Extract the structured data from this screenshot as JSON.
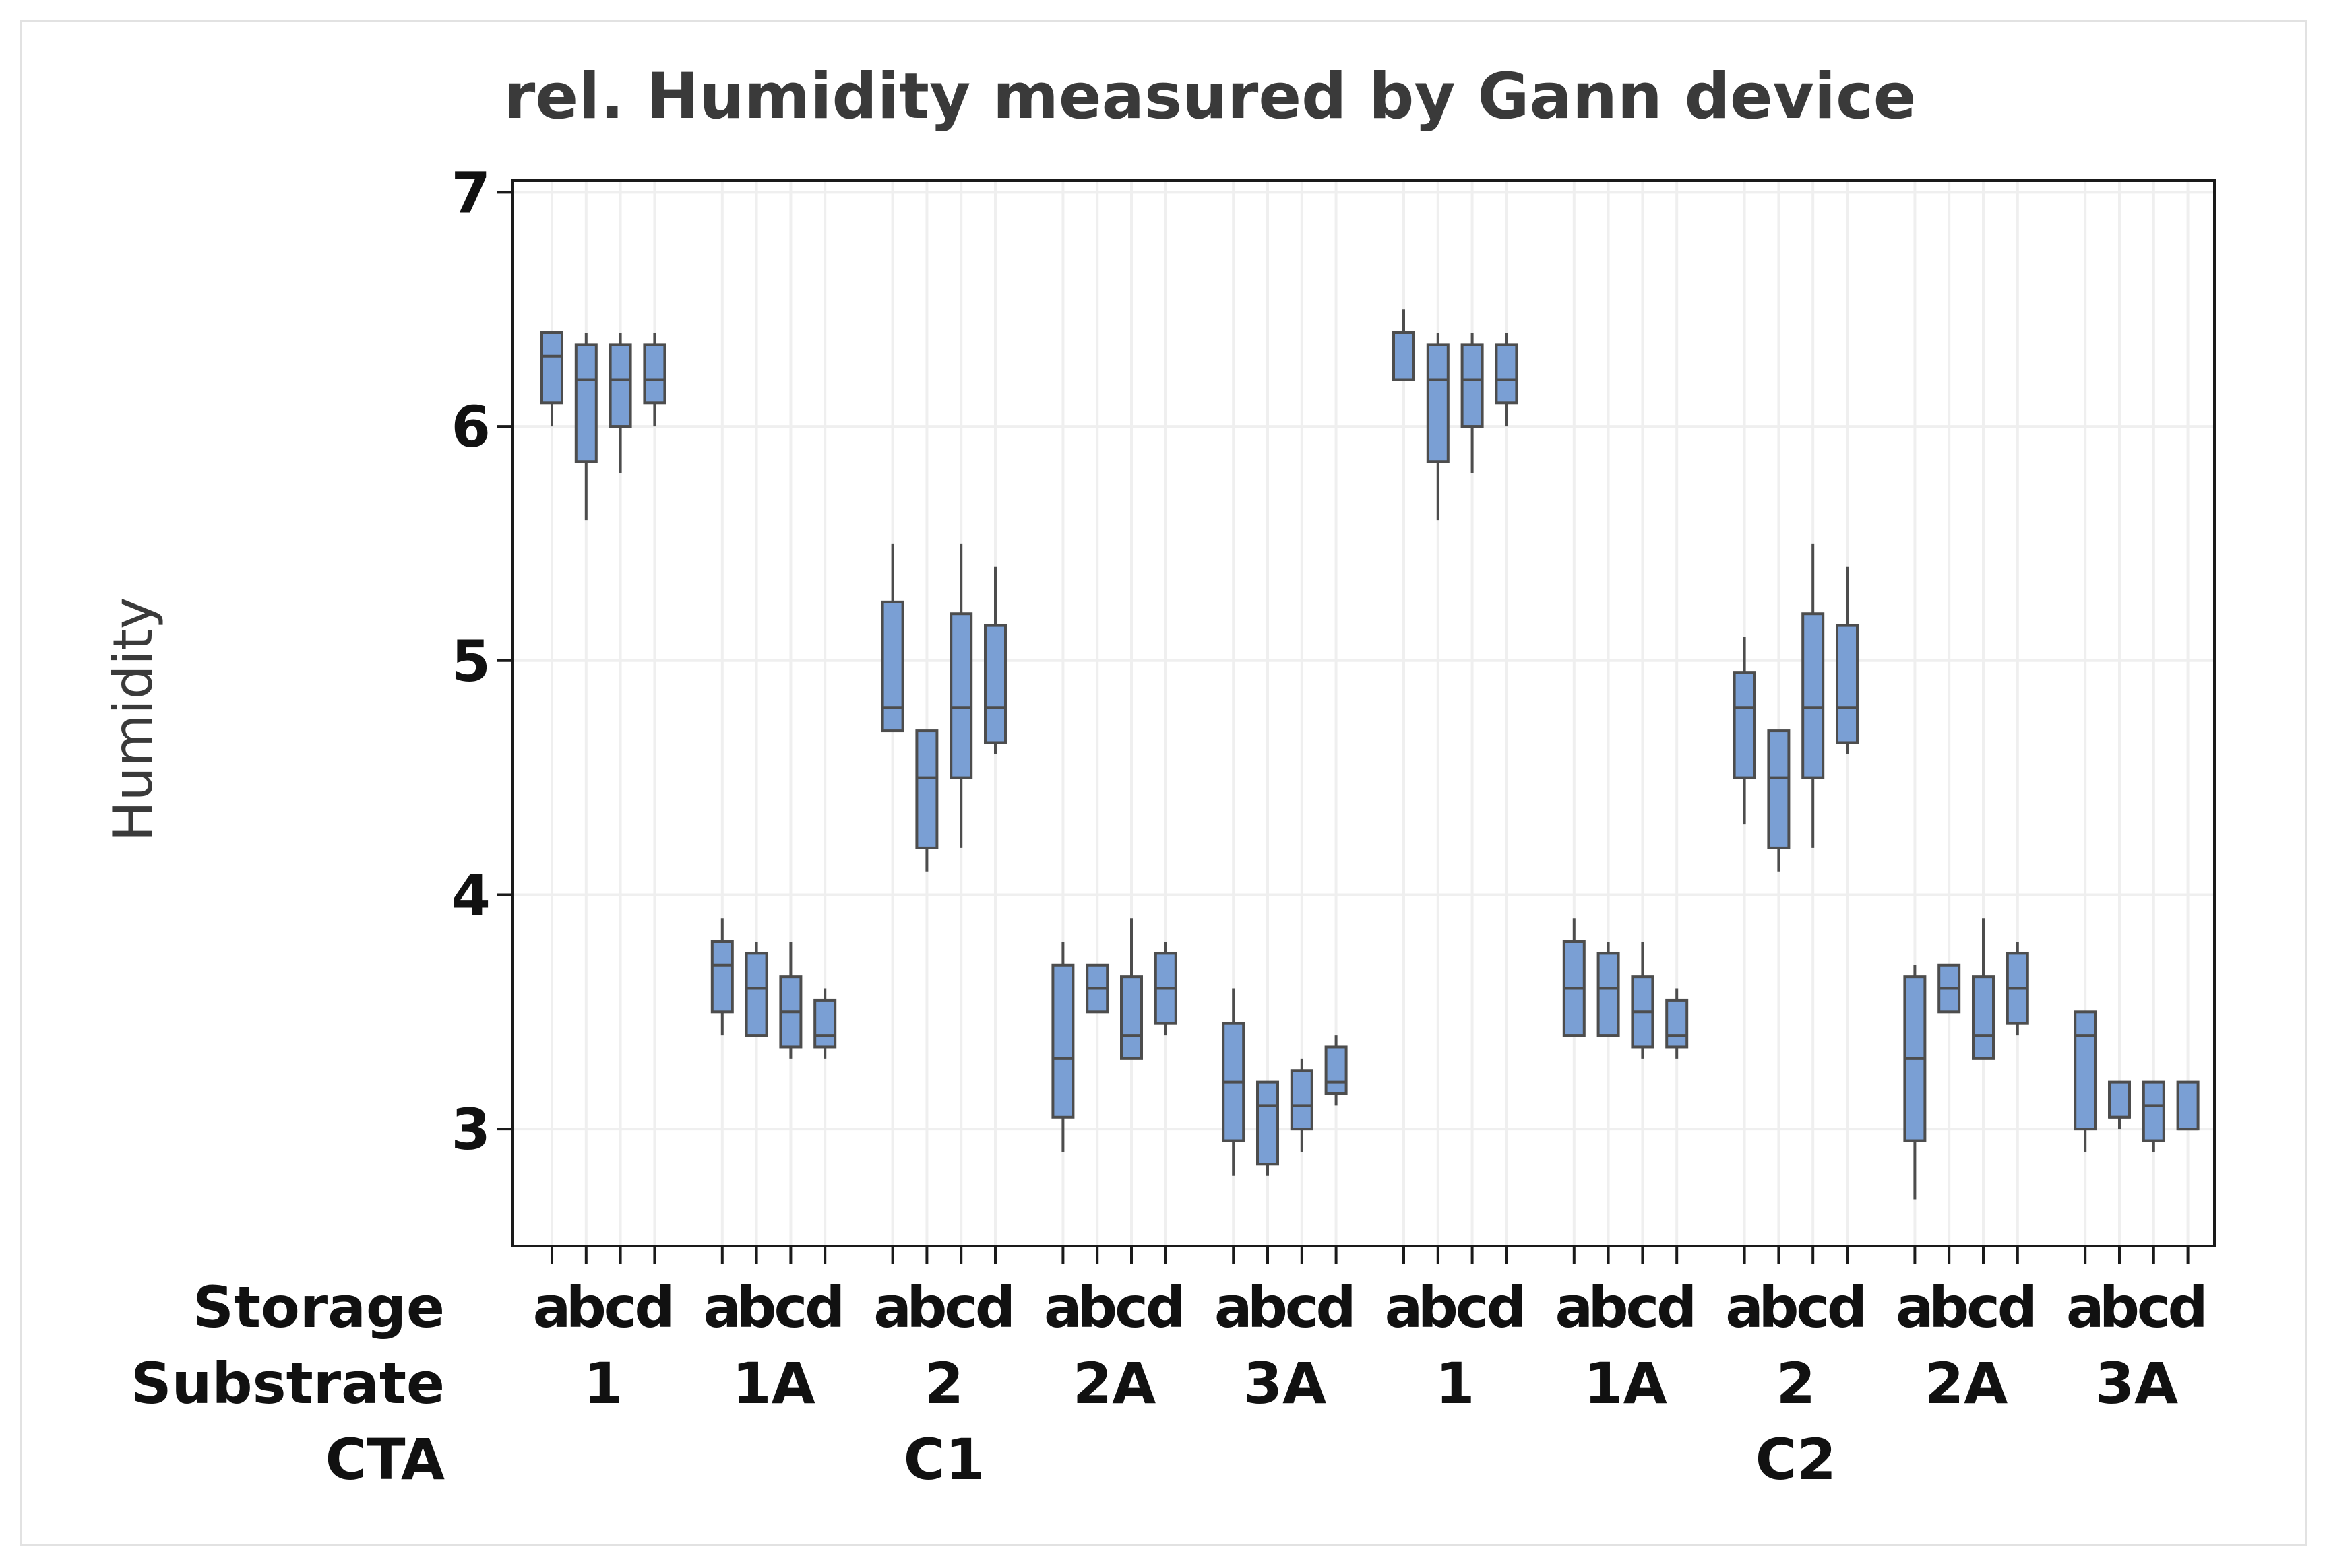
{
  "chart_data": {
    "type": "boxplot",
    "title": "rel. Humidity measured by Gann device",
    "ylabel": "Humidity",
    "ylim": [
      2.5,
      7.05
    ],
    "yticks": [
      3,
      4,
      5,
      6,
      7
    ],
    "grid": true,
    "levels": {
      "storage": [
        "a",
        "b",
        "c",
        "d"
      ],
      "substrate": [
        "1",
        "1A",
        "2",
        "2A",
        "3A"
      ],
      "cta": [
        "C1",
        "C2"
      ]
    },
    "row_labels": {
      "storage": "Storage",
      "substrate": "Substrate",
      "cta": "CTA"
    },
    "color": "#7a9fd4",
    "stroke": "#4d4d4d",
    "groups": [
      {
        "cta": "C1",
        "substrate": "1",
        "boxes": [
          {
            "storage": "a",
            "min": 6.0,
            "q1": 6.1,
            "median": 6.3,
            "q3": 6.4,
            "max": 6.4
          },
          {
            "storage": "b",
            "min": 5.6,
            "q1": 5.85,
            "median": 6.2,
            "q3": 6.35,
            "max": 6.4
          },
          {
            "storage": "c",
            "min": 5.8,
            "q1": 6.0,
            "median": 6.2,
            "q3": 6.35,
            "max": 6.4
          },
          {
            "storage": "d",
            "min": 6.0,
            "q1": 6.1,
            "median": 6.2,
            "q3": 6.35,
            "max": 6.4
          }
        ]
      },
      {
        "cta": "C1",
        "substrate": "1A",
        "boxes": [
          {
            "storage": "a",
            "min": 3.4,
            "q1": 3.5,
            "median": 3.7,
            "q3": 3.8,
            "max": 3.9
          },
          {
            "storage": "b",
            "min": 3.4,
            "q1": 3.4,
            "median": 3.6,
            "q3": 3.75,
            "max": 3.8
          },
          {
            "storage": "c",
            "min": 3.3,
            "q1": 3.35,
            "median": 3.5,
            "q3": 3.65,
            "max": 3.8
          },
          {
            "storage": "d",
            "min": 3.3,
            "q1": 3.35,
            "median": 3.4,
            "q3": 3.55,
            "max": 3.6
          }
        ]
      },
      {
        "cta": "C1",
        "substrate": "2",
        "boxes": [
          {
            "storage": "a",
            "min": 4.7,
            "q1": 4.7,
            "median": 4.8,
            "q3": 5.25,
            "max": 5.5
          },
          {
            "storage": "b",
            "min": 4.1,
            "q1": 4.2,
            "median": 4.5,
            "q3": 4.7,
            "max": 4.7
          },
          {
            "storage": "c",
            "min": 4.2,
            "q1": 4.5,
            "median": 4.8,
            "q3": 5.2,
            "max": 5.5
          },
          {
            "storage": "d",
            "min": 4.6,
            "q1": 4.65,
            "median": 4.8,
            "q3": 5.15,
            "max": 5.4
          }
        ]
      },
      {
        "cta": "C1",
        "substrate": "2A",
        "boxes": [
          {
            "storage": "a",
            "min": 2.9,
            "q1": 3.05,
            "median": 3.3,
            "q3": 3.7,
            "max": 3.8
          },
          {
            "storage": "b",
            "min": 3.5,
            "q1": 3.5,
            "median": 3.6,
            "q3": 3.7,
            "max": 3.7
          },
          {
            "storage": "c",
            "min": 3.3,
            "q1": 3.3,
            "median": 3.4,
            "q3": 3.65,
            "max": 3.9
          },
          {
            "storage": "d",
            "min": 3.4,
            "q1": 3.45,
            "median": 3.6,
            "q3": 3.75,
            "max": 3.8
          }
        ]
      },
      {
        "cta": "C1",
        "substrate": "3A",
        "boxes": [
          {
            "storage": "a",
            "min": 2.8,
            "q1": 2.95,
            "median": 3.2,
            "q3": 3.45,
            "max": 3.6
          },
          {
            "storage": "b",
            "min": 2.8,
            "q1": 2.85,
            "median": 3.1,
            "q3": 3.2,
            "max": 3.2
          },
          {
            "storage": "c",
            "min": 2.9,
            "q1": 3.0,
            "median": 3.1,
            "q3": 3.25,
            "max": 3.3
          },
          {
            "storage": "d",
            "min": 3.1,
            "q1": 3.15,
            "median": 3.2,
            "q3": 3.35,
            "max": 3.4
          }
        ]
      },
      {
        "cta": "C2",
        "substrate": "1",
        "boxes": [
          {
            "storage": "a",
            "min": 6.2,
            "q1": 6.2,
            "median": 6.2,
            "q3": 6.4,
            "max": 6.5
          },
          {
            "storage": "b",
            "min": 5.6,
            "q1": 5.85,
            "median": 6.2,
            "q3": 6.35,
            "max": 6.4
          },
          {
            "storage": "c",
            "min": 5.8,
            "q1": 6.0,
            "median": 6.2,
            "q3": 6.35,
            "max": 6.4
          },
          {
            "storage": "d",
            "min": 6.0,
            "q1": 6.1,
            "median": 6.2,
            "q3": 6.35,
            "max": 6.4
          }
        ]
      },
      {
        "cta": "C2",
        "substrate": "1A",
        "boxes": [
          {
            "storage": "a",
            "min": 3.4,
            "q1": 3.4,
            "median": 3.6,
            "q3": 3.8,
            "max": 3.9
          },
          {
            "storage": "b",
            "min": 3.4,
            "q1": 3.4,
            "median": 3.6,
            "q3": 3.75,
            "max": 3.8
          },
          {
            "storage": "c",
            "min": 3.3,
            "q1": 3.35,
            "median": 3.5,
            "q3": 3.65,
            "max": 3.8
          },
          {
            "storage": "d",
            "min": 3.3,
            "q1": 3.35,
            "median": 3.4,
            "q3": 3.55,
            "max": 3.6
          }
        ]
      },
      {
        "cta": "C2",
        "substrate": "2",
        "boxes": [
          {
            "storage": "a",
            "min": 4.3,
            "q1": 4.5,
            "median": 4.8,
            "q3": 4.95,
            "max": 5.1
          },
          {
            "storage": "b",
            "min": 4.1,
            "q1": 4.2,
            "median": 4.5,
            "q3": 4.7,
            "max": 4.7
          },
          {
            "storage": "c",
            "min": 4.2,
            "q1": 4.5,
            "median": 4.8,
            "q3": 5.2,
            "max": 5.5
          },
          {
            "storage": "d",
            "min": 4.6,
            "q1": 4.65,
            "median": 4.8,
            "q3": 5.15,
            "max": 5.4
          }
        ]
      },
      {
        "cta": "C2",
        "substrate": "2A",
        "boxes": [
          {
            "storage": "a",
            "min": 2.7,
            "q1": 2.95,
            "median": 3.3,
            "q3": 3.65,
            "max": 3.7
          },
          {
            "storage": "b",
            "min": 3.5,
            "q1": 3.5,
            "median": 3.6,
            "q3": 3.7,
            "max": 3.7
          },
          {
            "storage": "c",
            "min": 3.3,
            "q1": 3.3,
            "median": 3.4,
            "q3": 3.65,
            "max": 3.9
          },
          {
            "storage": "d",
            "min": 3.4,
            "q1": 3.45,
            "median": 3.6,
            "q3": 3.75,
            "max": 3.8
          }
        ]
      },
      {
        "cta": "C2",
        "substrate": "3A",
        "boxes": [
          {
            "storage": "a",
            "min": 2.9,
            "q1": 3.0,
            "median": 3.4,
            "q3": 3.5,
            "max": 3.5
          },
          {
            "storage": "b",
            "min": 3.0,
            "q1": 3.05,
            "median": 3.05,
            "q3": 3.2,
            "max": 3.2
          },
          {
            "storage": "c",
            "min": 2.9,
            "q1": 2.95,
            "median": 3.1,
            "q3": 3.2,
            "max": 3.2
          },
          {
            "storage": "d",
            "min": 3.0,
            "q1": 3.0,
            "median": 3.0,
            "q3": 3.2,
            "max": 3.2
          }
        ]
      }
    ]
  }
}
